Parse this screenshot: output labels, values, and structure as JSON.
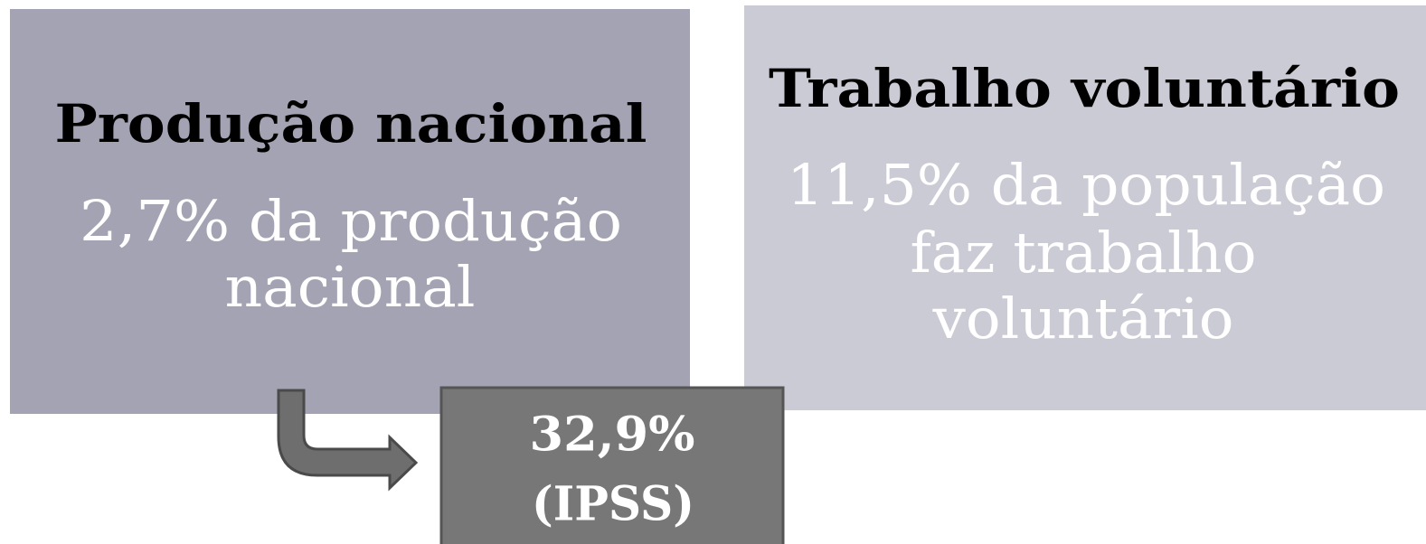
{
  "boxes": [
    {
      "title": "Produção nacional",
      "lines": [
        "2,7% da produção",
        "nacional"
      ]
    },
    {
      "title": "Trabalho voluntário",
      "lines": [
        "11,5% da população",
        "faz trabalho",
        "voluntário"
      ]
    }
  ],
  "callout": {
    "lines": [
      "32,9%",
      "(IPSS)"
    ]
  }
}
